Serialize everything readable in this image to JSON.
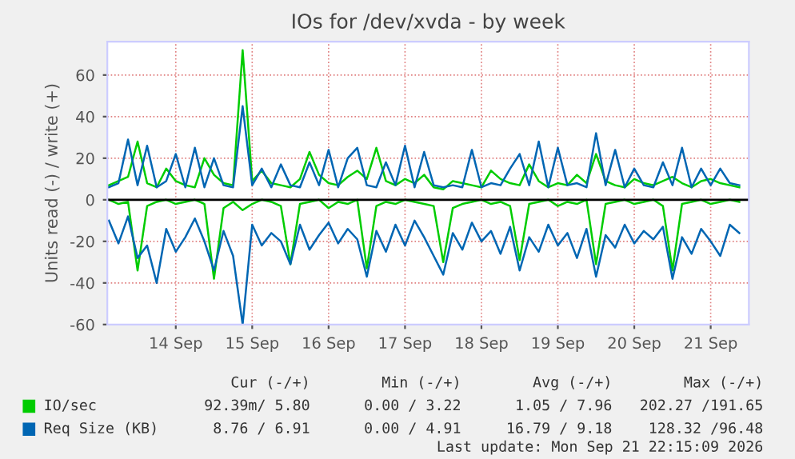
{
  "chart_data": {
    "type": "line",
    "title": "IOs for /dev/xvda - by week",
    "ylabel": "Units read (-) / write (+)",
    "x": [
      "2026-09-13T15:00",
      "2026-09-13T18:00",
      "2026-09-13T21:00",
      "2026-09-14T00:00",
      "2026-09-14T03:00",
      "2026-09-14T06:00",
      "2026-09-14T09:00",
      "2026-09-14T12:00",
      "2026-09-14T15:00",
      "2026-09-14T18:00",
      "2026-09-14T21:00",
      "2026-09-15T00:00",
      "2026-09-15T03:00",
      "2026-09-15T06:00",
      "2026-09-15T09:00",
      "2026-09-15T12:00",
      "2026-09-15T15:00",
      "2026-09-15T18:00",
      "2026-09-15T21:00",
      "2026-09-16T00:00",
      "2026-09-16T03:00",
      "2026-09-16T06:00",
      "2026-09-16T09:00",
      "2026-09-16T12:00",
      "2026-09-16T15:00",
      "2026-09-16T18:00",
      "2026-09-16T21:00",
      "2026-09-17T00:00",
      "2026-09-17T03:00",
      "2026-09-17T06:00",
      "2026-09-17T09:00",
      "2026-09-17T12:00",
      "2026-09-17T15:00",
      "2026-09-17T18:00",
      "2026-09-17T21:00",
      "2026-09-18T00:00",
      "2026-09-18T03:00",
      "2026-09-18T06:00",
      "2026-09-18T09:00",
      "2026-09-18T12:00",
      "2026-09-18T15:00",
      "2026-09-18T18:00",
      "2026-09-18T21:00",
      "2026-09-19T00:00",
      "2026-09-19T03:00",
      "2026-09-19T06:00",
      "2026-09-19T09:00",
      "2026-09-19T12:00",
      "2026-09-19T15:00",
      "2026-09-19T18:00",
      "2026-09-19T21:00",
      "2026-09-20T00:00",
      "2026-09-20T03:00",
      "2026-09-20T06:00",
      "2026-09-20T09:00",
      "2026-09-20T12:00",
      "2026-09-20T15:00",
      "2026-09-20T18:00",
      "2026-09-20T21:00",
      "2026-09-21T00:00",
      "2026-09-21T03:00",
      "2026-09-21T06:00",
      "2026-09-21T09:00",
      "2026-09-21T12:00",
      "2026-09-21T15:00",
      "2026-09-21T18:00",
      "2026-09-21T21:00"
    ],
    "series": [
      {
        "name": "IO/sec",
        "color": "#00cc00",
        "values": [
          7,
          9,
          11,
          28,
          8,
          6,
          15,
          9,
          7,
          6,
          20,
          12,
          8,
          7,
          72,
          9,
          14,
          8,
          7,
          6,
          10,
          23,
          12,
          8,
          7,
          11,
          14,
          10,
          25,
          9,
          7,
          10,
          8,
          12,
          6,
          5,
          9,
          8,
          7,
          6,
          14,
          10,
          8,
          7,
          17,
          9,
          6,
          8,
          7,
          12,
          8,
          22,
          9,
          7,
          6,
          10,
          8,
          7,
          9,
          11,
          8,
          6,
          9,
          10,
          8,
          7,
          6
        ]
      },
      {
        "color": "#00cc00",
        "values": [
          0,
          -2,
          -1,
          -34,
          -3,
          -1,
          0,
          -2,
          -1,
          0,
          -2,
          -38,
          -4,
          -1,
          -5,
          -2,
          0,
          -1,
          -3,
          -31,
          -2,
          -1,
          0,
          -4,
          -1,
          -2,
          0,
          -33,
          -3,
          -1,
          -2,
          0,
          -1,
          -2,
          -3,
          -30,
          -4,
          -2,
          -1,
          0,
          -2,
          -1,
          -3,
          -29,
          -2,
          -1,
          0,
          -3,
          -1,
          -2,
          0,
          -31,
          -2,
          -1,
          0,
          -2,
          -1,
          0,
          -3,
          -34,
          -2,
          -1,
          0,
          -2,
          -1,
          0,
          -1
        ]
      },
      {
        "name": "Req Size (KB)",
        "color": "#0066b3",
        "values": [
          6,
          8,
          29,
          7,
          26,
          6,
          9,
          22,
          6,
          25,
          6,
          20,
          7,
          6,
          45,
          7,
          15,
          6,
          17,
          7,
          6,
          18,
          7,
          24,
          6,
          20,
          25,
          7,
          6,
          18,
          7,
          26,
          6,
          23,
          7,
          6,
          7,
          6,
          24,
          6,
          8,
          7,
          15,
          22,
          7,
          28,
          6,
          25,
          7,
          8,
          6,
          32,
          7,
          24,
          6,
          15,
          7,
          6,
          18,
          7,
          25,
          6,
          15,
          7,
          15,
          8,
          7
        ]
      },
      {
        "color": "#0066b3",
        "values": [
          -10,
          -21,
          -8,
          -28,
          -22,
          -40,
          -14,
          -25,
          -18,
          -9,
          -20,
          -34,
          -15,
          -27,
          -60,
          -12,
          -22,
          -16,
          -20,
          -31,
          -12,
          -24,
          -17,
          -11,
          -21,
          -14,
          -19,
          -37,
          -15,
          -25,
          -12,
          -22,
          -10,
          -18,
          -27,
          -36,
          -16,
          -24,
          -11,
          -20,
          -15,
          -26,
          -13,
          -34,
          -18,
          -25,
          -12,
          -22,
          -16,
          -28,
          -14,
          -37,
          -17,
          -23,
          -12,
          -21,
          -15,
          -19,
          -13,
          -38,
          -18,
          -26,
          -14,
          -20,
          -27,
          -12,
          -16
        ]
      }
    ],
    "xlim": [
      "2026-09-13T14:30",
      "2026-09-22T00:00"
    ],
    "xticks": [
      {
        "value": "2026-09-14T12:00",
        "label": "14 Sep"
      },
      {
        "value": "2026-09-15T12:00",
        "label": "15 Sep"
      },
      {
        "value": "2026-09-16T12:00",
        "label": "16 Sep"
      },
      {
        "value": "2026-09-17T12:00",
        "label": "17 Sep"
      },
      {
        "value": "2026-09-18T12:00",
        "label": "18 Sep"
      },
      {
        "value": "2026-09-19T12:00",
        "label": "19 Sep"
      },
      {
        "value": "2026-09-20T12:00",
        "label": "20 Sep"
      },
      {
        "value": "2026-09-21T12:00",
        "label": "21 Sep"
      }
    ],
    "ylim": [
      -60,
      76
    ],
    "yticks": [
      -60,
      -40,
      -20,
      0,
      20,
      40,
      60
    ],
    "ref_lines": [
      {
        "axis": "y",
        "value": 0,
        "color": "#000000"
      }
    ],
    "grid": true,
    "legend": "bottom",
    "annotations": [
      "Cur (-/+)",
      "Min (-/+)",
      "Avg (-/+)",
      "Max (-/+)",
      "92.39m/ 5.80",
      "0.00 / 3.22",
      "1.05 / 7.96",
      "202.27 /191.65",
      "8.76 / 6.91",
      "0.00 / 4.91",
      "16.79 / 9.18",
      "128.32 /96.48",
      "Last update: Mon Sep 21 22:15:09 2026"
    ]
  }
}
